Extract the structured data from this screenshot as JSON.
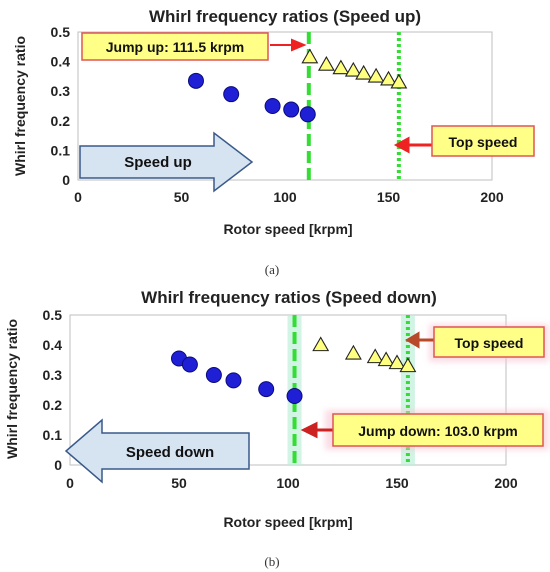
{
  "colors": {
    "circle_fill": "#1f1fd6",
    "circle_stroke": "#0b0b7a",
    "triangle_fill": "#ffff80",
    "triangle_stroke": "#222222",
    "green_line": "#33dd33",
    "callout_fill": "#ffff88",
    "callout_stroke": "#e05555",
    "red_arrow": "#ee2222",
    "blue_arrow_fill": "#d6e4f2",
    "blue_arrow_stroke": "#3a5a8a"
  },
  "chart_data": [
    {
      "type": "scatter",
      "panel_label": "(a)",
      "title": "Whirl frequency ratios (Speed up)",
      "xlabel": "Rotor speed [krpm]",
      "ylabel": "Whirl frequency ratio",
      "xlim": [
        0,
        200
      ],
      "ylim": [
        0,
        0.5
      ],
      "xticks": [
        "0",
        "50",
        "100",
        "150",
        "200"
      ],
      "yticks": [
        "0",
        "0.1",
        "0.2",
        "0.3",
        "0.4",
        "0.5"
      ],
      "grid": false,
      "series": [
        {
          "marker": "circle",
          "x": [
            57,
            74,
            94,
            103,
            111
          ],
          "y": [
            0.335,
            0.29,
            0.25,
            0.238,
            0.222
          ]
        },
        {
          "marker": "triangle",
          "x": [
            112,
            120,
            127,
            133,
            138,
            144,
            150,
            155
          ],
          "y": [
            0.415,
            0.39,
            0.378,
            0.37,
            0.36,
            0.35,
            0.34,
            0.33
          ]
        }
      ],
      "vlines": [
        {
          "x": 111.5,
          "style": "dashed"
        },
        {
          "x": 155,
          "style": "dotted"
        }
      ],
      "annotations": [
        {
          "text": "Jump up: 111.5 krpm"
        },
        {
          "text": "Top speed"
        },
        {
          "text": "Speed up"
        }
      ]
    },
    {
      "type": "scatter",
      "panel_label": "(b)",
      "title": "Whirl frequency ratios (Speed down)",
      "xlabel": "Rotor speed [krpm]",
      "ylabel": "Whirl frequency ratio",
      "xlim": [
        0,
        200
      ],
      "ylim": [
        0,
        0.5
      ],
      "xticks": [
        "0",
        "50",
        "100",
        "150",
        "200"
      ],
      "yticks": [
        "0",
        "0.1",
        "0.2",
        "0.3",
        "0.4",
        "0.5"
      ],
      "grid": false,
      "series": [
        {
          "marker": "circle",
          "x": [
            50,
            55,
            66,
            75,
            90,
            103
          ],
          "y": [
            0.355,
            0.335,
            0.3,
            0.282,
            0.253,
            0.23
          ]
        },
        {
          "marker": "triangle",
          "x": [
            115,
            130,
            140,
            145,
            150,
            155
          ],
          "y": [
            0.4,
            0.372,
            0.36,
            0.35,
            0.34,
            0.33
          ]
        }
      ],
      "vlines": [
        {
          "x": 103,
          "style": "dashed"
        },
        {
          "x": 155,
          "style": "dotted"
        }
      ],
      "annotations": [
        {
          "text": "Top speed"
        },
        {
          "text": "Jump down: 103.0 krpm"
        },
        {
          "text": "Speed down"
        }
      ]
    }
  ]
}
